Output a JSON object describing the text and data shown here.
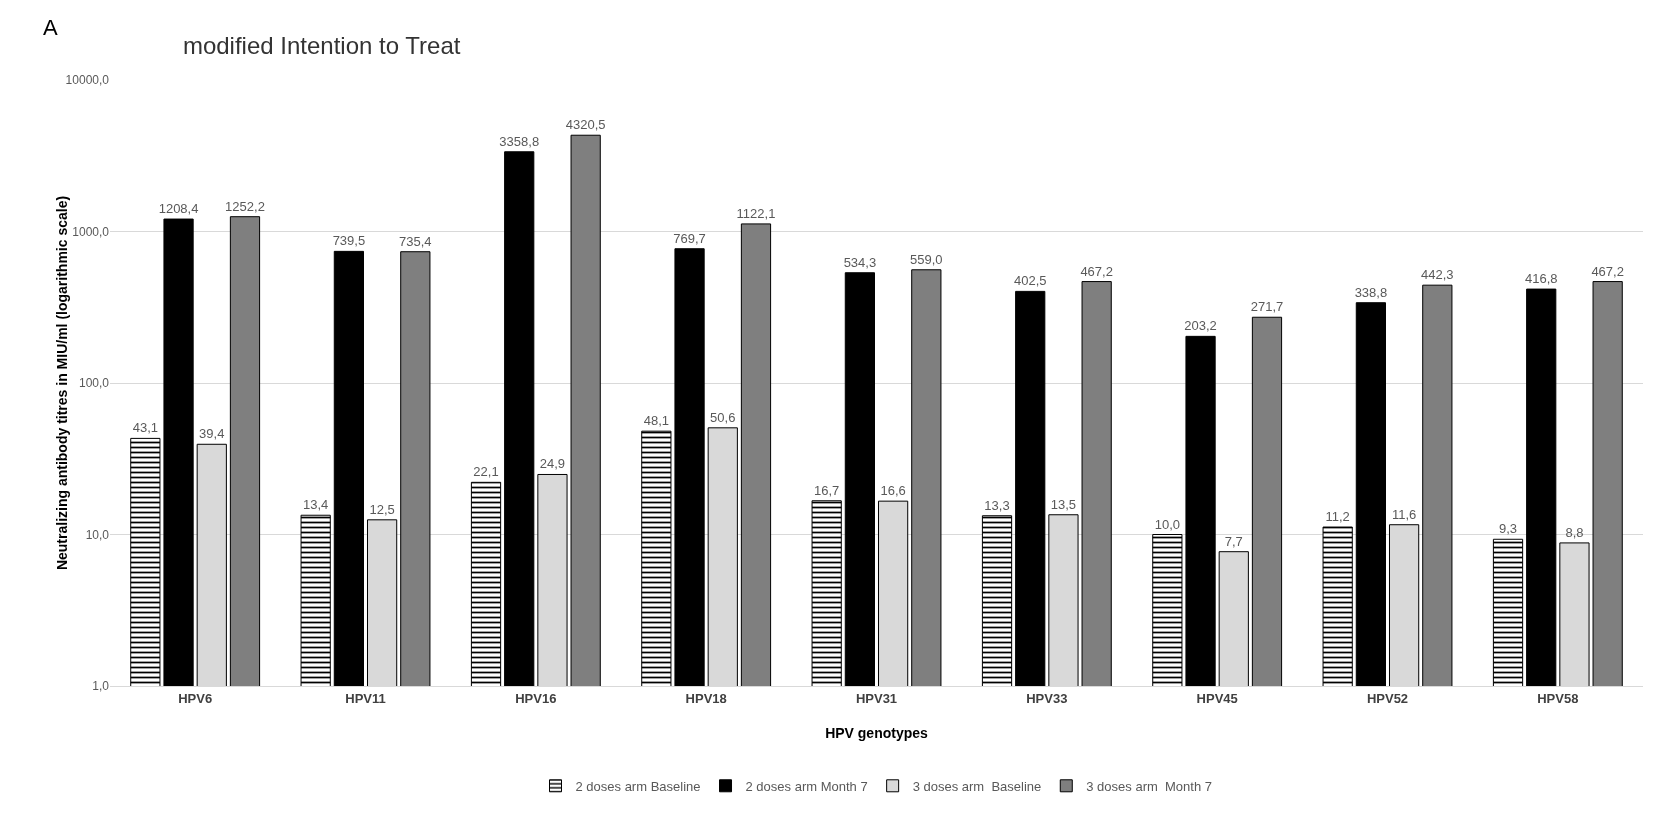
{
  "chart_data": {
    "type": "bar",
    "title": "modified Intention to Treat",
    "xlabel": "HPV genotypes",
    "ylabel": "Neutralizing antibody titres in MIU/ml (logarithmic scale)",
    "annotations": [
      "A"
    ],
    "categories": [
      "HPV6",
      "HPV11",
      "HPV16",
      "HPV18",
      "HPV31",
      "HPV33",
      "HPV45",
      "HPV52",
      "HPV58"
    ],
    "series": [
      {
        "name": "2 doses arm Baseline",
        "color": "#000000",
        "values": [
          43.1,
          13.4,
          22.1,
          48.1,
          16.7,
          13.3,
          10.0,
          11.2,
          9.3
        ],
        "value_labels": [
          "43,1",
          "13,4",
          "22,1",
          "48,1",
          "16,7",
          "13,3",
          "10,0",
          "11,2",
          "9,3"
        ]
      },
      {
        "name": "2 doses arm Month 7",
        "color": "#000000",
        "values": [
          1208.4,
          739.5,
          3358.8,
          769.7,
          534.3,
          402.5,
          203.2,
          338.8,
          416.8
        ],
        "value_labels": [
          "1208,4",
          "739,5",
          "3358,8",
          "769,7",
          "534,3",
          "402,5",
          "203,2",
          "338,8",
          "416,8"
        ]
      },
      {
        "name": "3 doses arm  Baseline",
        "color": "#d9d9d9",
        "values": [
          39.4,
          12.5,
          24.9,
          50.6,
          16.6,
          13.5,
          7.7,
          11.6,
          8.8
        ],
        "value_labels": [
          "39,4",
          "12,5",
          "24,9",
          "50,6",
          "16,6",
          "13,5",
          "7,7",
          "11,6",
          "8,8"
        ]
      },
      {
        "name": "3 doses arm  Month 7",
        "color": "#7f7f7f",
        "values": [
          1252.2,
          735.4,
          4320.5,
          1122.1,
          559.0,
          467.2,
          271.7,
          442.3,
          467.2
        ],
        "value_labels": [
          "1252,2",
          "735,4",
          "4320,5",
          "1122,1",
          "559,0",
          "467,2",
          "271,7",
          "442,3",
          "467,2"
        ]
      }
    ],
    "log": true,
    "ylim": [
      1,
      10000
    ],
    "yticks": [
      {
        "value": 1,
        "label": "1,0"
      },
      {
        "value": 10,
        "label": "10,0"
      },
      {
        "value": 100,
        "label": "100,0"
      },
      {
        "value": 1000,
        "label": "1000,0"
      },
      {
        "value": 10000,
        "label": "10000,0"
      }
    ],
    "grid": "y",
    "legend": "bottom"
  }
}
